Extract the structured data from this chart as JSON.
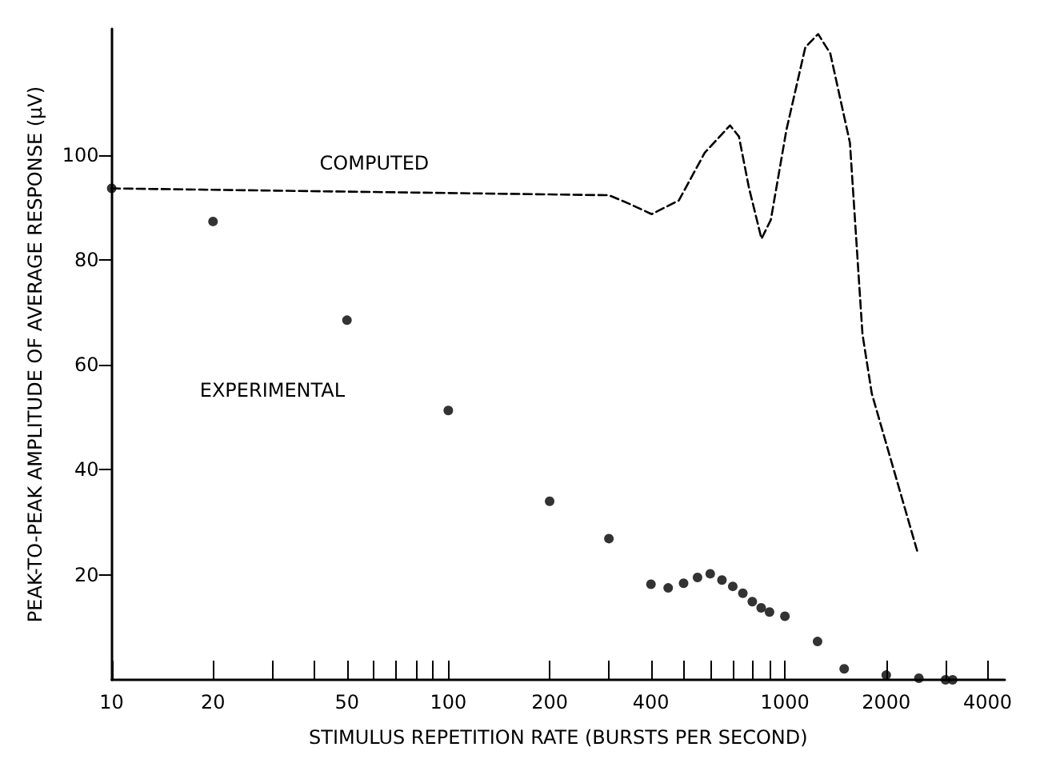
{
  "chart_data": {
    "type": "scatter",
    "xlabel": "STIMULUS REPETITION RATE (BURSTS PER SECOND)",
    "ylabel": "PEAK-TO-PEAK AMPLITUDE OF AVERAGE RESPONSE (μV)",
    "log": "x",
    "grid": false,
    "legend": false,
    "xlim": [
      10,
      4500
    ],
    "ylim": [
      0,
      124
    ],
    "xticks": [
      10,
      20,
      {
        "value": 30,
        "label": null
      },
      {
        "value": 40,
        "label": null
      },
      50,
      {
        "value": 60,
        "label": null
      },
      {
        "value": 70,
        "label": null
      },
      {
        "value": 80,
        "label": null
      },
      {
        "value": 90,
        "label": null
      },
      100,
      200,
      {
        "value": 300,
        "label": null
      },
      400,
      {
        "value": 500,
        "label": null
      },
      {
        "value": 600,
        "label": null
      },
      {
        "value": 700,
        "label": null
      },
      {
        "value": 800,
        "label": null
      },
      {
        "value": 900,
        "label": null
      },
      1000,
      2000,
      {
        "value": 3000,
        "label": null
      },
      4000
    ],
    "yticks": [
      20,
      40,
      60,
      80,
      100
    ],
    "series": [
      {
        "name": "COMPUTED",
        "type": "line",
        "color": "#000000",
        "marker": "none",
        "line_style": "dashed",
        "x": [
          10,
          300,
          344,
          402,
          484,
          578,
          687,
          730,
          782,
          852,
          908,
          1010,
          1150,
          1255,
          1364,
          1560,
          1700,
          1812,
          2108,
          2470
        ],
        "values": [
          93.6,
          92.3,
          90.7,
          88.7,
          91.3,
          100.4,
          105.6,
          103.5,
          93.7,
          84,
          87.6,
          104.7,
          120.5,
          123,
          119.3,
          102.3,
          65.8,
          54.5,
          39.9,
          24.6
        ]
      },
      {
        "name": "EXPERIMENTAL",
        "type": "scatter",
        "color": "#000000",
        "marker": "circle",
        "x": [
          10,
          20,
          50,
          100,
          200,
          300,
          400,
          450,
          500,
          550,
          600,
          650,
          700,
          750,
          800,
          850,
          900,
          1000,
          1250,
          1500,
          2000,
          2500,
          3000,
          3150
        ],
        "values": [
          93.6,
          87.3,
          68.5,
          51.3,
          34,
          26.9,
          18.2,
          17.5,
          18.4,
          19.5,
          20.2,
          19,
          17.8,
          16.5,
          14.9,
          13.7,
          12.9,
          12.1,
          7.3,
          2.1,
          0.9,
          0.3,
          0,
          0
        ]
      }
    ]
  }
}
